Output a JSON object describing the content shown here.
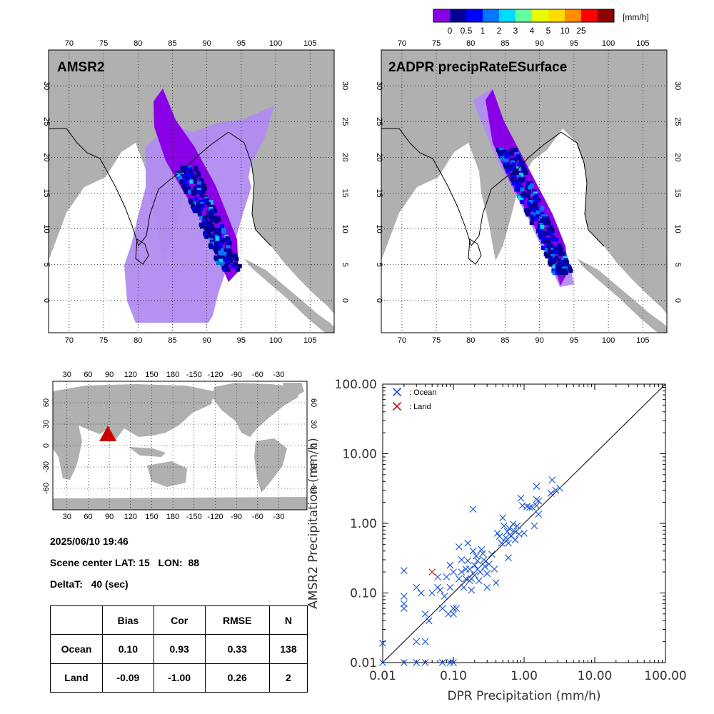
{
  "colorbar": {
    "unit": "[mm/h]",
    "tick_labels": [
      "0",
      "0.5",
      "1",
      "2",
      "3",
      "4",
      "5",
      "10",
      "25"
    ],
    "colors": [
      "#8a00e6",
      "#000096",
      "#0000ff",
      "#0078ff",
      "#00dcff",
      "#64ffa0",
      "#e6ff00",
      "#ffdc00",
      "#ff8c00",
      "#ff0000",
      "#8c0000"
    ]
  },
  "map_colors": {
    "land": "#b0b0b0",
    "ocean": "#ffffff",
    "swath_bg": "#b18cf0"
  },
  "maps": [
    {
      "title": "AMSR2",
      "lon_ticks": [
        "70",
        "75",
        "80",
        "85",
        "90",
        "95",
        "100",
        "105"
      ],
      "lat_ticks": [
        "0",
        "5",
        "10",
        "15",
        "20",
        "25",
        "30"
      ]
    },
    {
      "title": "2ADPR precipRateESurface",
      "lon_ticks": [
        "70",
        "75",
        "80",
        "85",
        "90",
        "95",
        "100",
        "105"
      ],
      "lat_ticks": [
        "0",
        "5",
        "10",
        "15",
        "20",
        "25",
        "30"
      ]
    }
  ],
  "world_map": {
    "lon_ticks": [
      "30",
      "60",
      "90",
      "120",
      "150",
      "180",
      "-150",
      "-120",
      "-90",
      "-60",
      "-30"
    ],
    "lat_ticks": [
      "-60",
      "-30",
      "0",
      "30",
      "60"
    ],
    "marker": {
      "lon": 88,
      "lat": 15,
      "color": "#c80000"
    }
  },
  "info": {
    "datetime": "2025/06/10 19:46",
    "scene_center": "Scene center LAT: 15   LON:  88",
    "deltat": "DeltaT:   40 (sec)"
  },
  "stats_table": {
    "headers": [
      "",
      "Bias",
      "Cor",
      "RMSE",
      "N"
    ],
    "rows": [
      [
        "Ocean",
        "0.10",
        "0.93",
        "0.33",
        "138"
      ],
      [
        "Land",
        "-0.09",
        "-1.00",
        "0.26",
        "2"
      ]
    ]
  },
  "chart_data": {
    "type": "scatter",
    "xlabel": "DPR Precipitation (mm/h)",
    "ylabel": "AMSR2 Precipitation (mm/h)",
    "xscale": "log",
    "yscale": "log",
    "xlim": [
      0.01,
      100
    ],
    "ylim": [
      0.01,
      100
    ],
    "x_tick_labels": [
      "0.01",
      "0.10",
      "1.00",
      "10.00",
      "100.00"
    ],
    "y_tick_labels": [
      "0.01",
      "0.10",
      "1.00",
      "10.00",
      "100.00"
    ],
    "reference_line": "1:1",
    "legend_position": "top-left",
    "series": [
      {
        "name": ": Ocean",
        "color": "#1450dc",
        "marker": "x",
        "points": [
          [
            0.01,
            0.019
          ],
          [
            0.01,
            0.01
          ],
          [
            0.02,
            0.01
          ],
          [
            0.03,
            0.01
          ],
          [
            0.04,
            0.01
          ],
          [
            0.07,
            0.01
          ],
          [
            0.09,
            0.01
          ],
          [
            0.1,
            0.01
          ],
          [
            0.02,
            0.21
          ],
          [
            0.02,
            0.09
          ],
          [
            0.02,
            0.07
          ],
          [
            0.02,
            0.06
          ],
          [
            0.03,
            0.12
          ],
          [
            0.03,
            0.02
          ],
          [
            0.04,
            0.02
          ],
          [
            0.035,
            0.1
          ],
          [
            0.04,
            0.05
          ],
          [
            0.045,
            0.04
          ],
          [
            0.05,
            0.1
          ],
          [
            0.06,
            0.17
          ],
          [
            0.06,
            0.12
          ],
          [
            0.065,
            0.11
          ],
          [
            0.07,
            0.06
          ],
          [
            0.075,
            0.09
          ],
          [
            0.08,
            0.17
          ],
          [
            0.085,
            0.05
          ],
          [
            0.09,
            0.25
          ],
          [
            0.09,
            0.12
          ],
          [
            0.1,
            0.2
          ],
          [
            0.1,
            0.06
          ],
          [
            0.1,
            0.05
          ],
          [
            0.11,
            0.06
          ],
          [
            0.12,
            0.16
          ],
          [
            0.12,
            0.46
          ],
          [
            0.13,
            0.3
          ],
          [
            0.13,
            0.2
          ],
          [
            0.14,
            0.12
          ],
          [
            0.15,
            0.22
          ],
          [
            0.15,
            0.16
          ],
          [
            0.16,
            0.52
          ],
          [
            0.16,
            0.29
          ],
          [
            0.17,
            0.22
          ],
          [
            0.17,
            0.15
          ],
          [
            0.18,
            0.16
          ],
          [
            0.18,
            0.11
          ],
          [
            0.19,
            1.6
          ],
          [
            0.19,
            0.4
          ],
          [
            0.2,
            0.25
          ],
          [
            0.2,
            0.18
          ],
          [
            0.21,
            0.34
          ],
          [
            0.22,
            0.29
          ],
          [
            0.22,
            0.22
          ],
          [
            0.23,
            0.15
          ],
          [
            0.24,
            0.2
          ],
          [
            0.25,
            0.42
          ],
          [
            0.26,
            0.37
          ],
          [
            0.27,
            0.3
          ],
          [
            0.28,
            0.24
          ],
          [
            0.3,
            0.19
          ],
          [
            0.3,
            0.12
          ],
          [
            0.32,
            0.26
          ],
          [
            0.35,
            0.36
          ],
          [
            0.38,
            0.22
          ],
          [
            0.4,
            0.14
          ],
          [
            0.42,
            0.72
          ],
          [
            0.45,
            0.65
          ],
          [
            0.48,
            0.52
          ],
          [
            0.5,
            1.2
          ],
          [
            0.52,
            0.92
          ],
          [
            0.55,
            0.62
          ],
          [
            0.58,
            0.76
          ],
          [
            0.6,
            0.52
          ],
          [
            0.6,
            0.32
          ],
          [
            0.62,
            0.85
          ],
          [
            0.65,
            0.66
          ],
          [
            0.7,
            0.98
          ],
          [
            0.72,
            0.78
          ],
          [
            0.75,
            0.58
          ],
          [
            0.8,
            0.92
          ],
          [
            0.85,
            0.7
          ],
          [
            0.9,
            2.3
          ],
          [
            0.95,
            1.8
          ],
          [
            1.0,
            0.72
          ],
          [
            1.1,
            1.75
          ],
          [
            1.2,
            1.7
          ],
          [
            1.3,
            1.7
          ],
          [
            1.4,
            0.92
          ],
          [
            1.5,
            1.8
          ],
          [
            1.5,
            2.2
          ],
          [
            1.5,
            3.4
          ],
          [
            1.6,
            1.35
          ],
          [
            1.6,
            2.1
          ],
          [
            2.4,
            2.7
          ],
          [
            2.5,
            4.2
          ],
          [
            2.8,
            3.0
          ],
          [
            3.2,
            3.2
          ]
        ]
      },
      {
        "name": ": Land",
        "color": "#c81414",
        "marker": "x",
        "points": [
          [
            0.05,
            0.2
          ]
        ]
      }
    ]
  }
}
